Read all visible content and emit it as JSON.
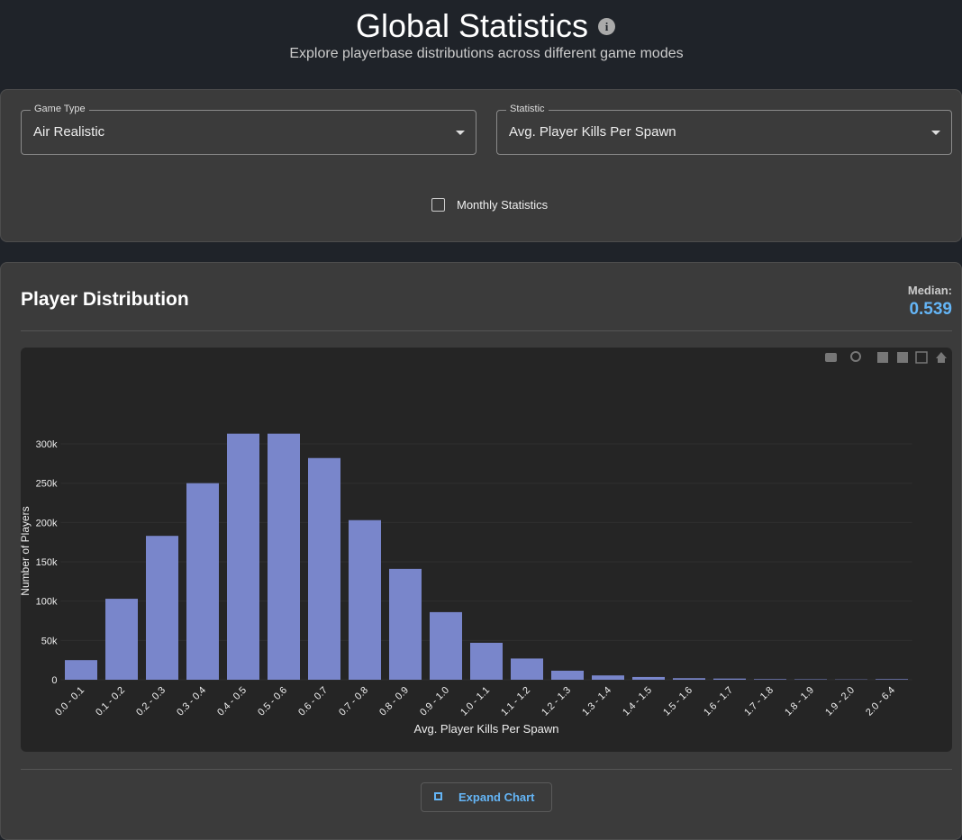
{
  "header": {
    "title": "Global Statistics",
    "subtitle": "Explore playerbase distributions across different game modes"
  },
  "filters": {
    "game_type": {
      "label": "Game Type",
      "value": "Air Realistic"
    },
    "statistic": {
      "label": "Statistic",
      "value": "Avg. Player Kills Per Spawn"
    },
    "monthly": {
      "label": "Monthly Statistics"
    }
  },
  "panel": {
    "title": "Player Distribution",
    "median_label": "Median:",
    "median_value": "0.539",
    "button": "Expand Chart"
  },
  "chart_data": {
    "type": "bar",
    "x_label": "Avg. Player Kills Per Spawn",
    "y_label": "Number of Players",
    "categories": [
      "0.0 - 0.1",
      "0.1 - 0.2",
      "0.2 - 0.3",
      "0.3 - 0.4",
      "0.4 - 0.5",
      "0.5 - 0.6",
      "0.6 - 0.7",
      "0.7 - 0.8",
      "0.8 - 0.9",
      "0.9 - 1.0",
      "1.0 - 1.1",
      "1.1 - 1.2",
      "1.2 - 1.3",
      "1.3 - 1.4",
      "1.4 - 1.5",
      "1.5 - 1.6",
      "1.6 - 1.7",
      "1.7 - 1.8",
      "1.8 - 1.9",
      "1.9 - 2.0",
      "2.0 - 6.4"
    ],
    "values": [
      25000,
      103000,
      183000,
      250000,
      313000,
      313000,
      282000,
      203000,
      141000,
      86000,
      47000,
      27000,
      11500,
      5500,
      3500,
      2000,
      1500,
      800,
      600,
      400,
      800
    ],
    "color": "#7986cb",
    "ylim": [
      0,
      355000
    ],
    "yticks": [
      0,
      {
        "value": 50000,
        "label": "50k"
      },
      {
        "value": 100000,
        "label": "100k"
      },
      {
        "value": 150000,
        "label": "150k"
      },
      {
        "value": 200000,
        "label": "200k"
      },
      {
        "value": 250000,
        "label": "250k"
      },
      {
        "value": 300000,
        "label": "300k"
      }
    ],
    "grid": true
  }
}
